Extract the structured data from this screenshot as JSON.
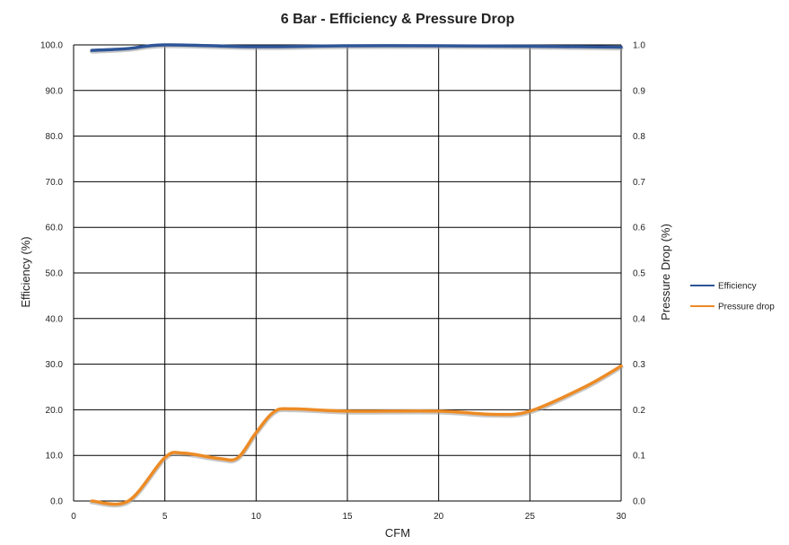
{
  "chart_data": {
    "type": "line",
    "title": "6 Bar - Efficiency & Pressure Drop",
    "xlabel": "CFM",
    "ylabel": "Efficiency (%)",
    "y2label": "Pressure Drop (%)",
    "xlim": [
      0,
      30
    ],
    "ylim": [
      0,
      100
    ],
    "y2lim": [
      0,
      1
    ],
    "x_ticks": [
      "0",
      "5",
      "10",
      "15",
      "20",
      "25",
      "30"
    ],
    "y_ticks": [
      "0.0",
      "10.0",
      "20.0",
      "30.0",
      "40.0",
      "50.0",
      "60.0",
      "70.0",
      "80.0",
      "90.0",
      "100.0"
    ],
    "y2_ticks": [
      "0.0",
      "0.1",
      "0.2",
      "0.3",
      "0.4",
      "0.5",
      "0.6",
      "0.7",
      "0.8",
      "0.9",
      "1.0"
    ],
    "grid": true,
    "legend_position": "right",
    "series": [
      {
        "name": "Efficiency",
        "axis": "left",
        "color": "#2e5597",
        "x": [
          1,
          3,
          5,
          10,
          15,
          20,
          25,
          30
        ],
        "y": [
          98.8,
          99.2,
          100.0,
          99.6,
          99.8,
          99.8,
          99.7,
          99.5
        ]
      },
      {
        "name": "Pressure drop",
        "axis": "right",
        "color": "#ed8b25",
        "x": [
          1,
          3,
          5,
          6,
          8,
          9,
          10,
          11,
          12,
          15,
          20,
          23,
          25,
          28,
          30
        ],
        "y": [
          0.0,
          0.0,
          0.095,
          0.105,
          0.093,
          0.095,
          0.15,
          0.196,
          0.202,
          0.197,
          0.197,
          0.19,
          0.197,
          0.25,
          0.296
        ]
      }
    ]
  }
}
